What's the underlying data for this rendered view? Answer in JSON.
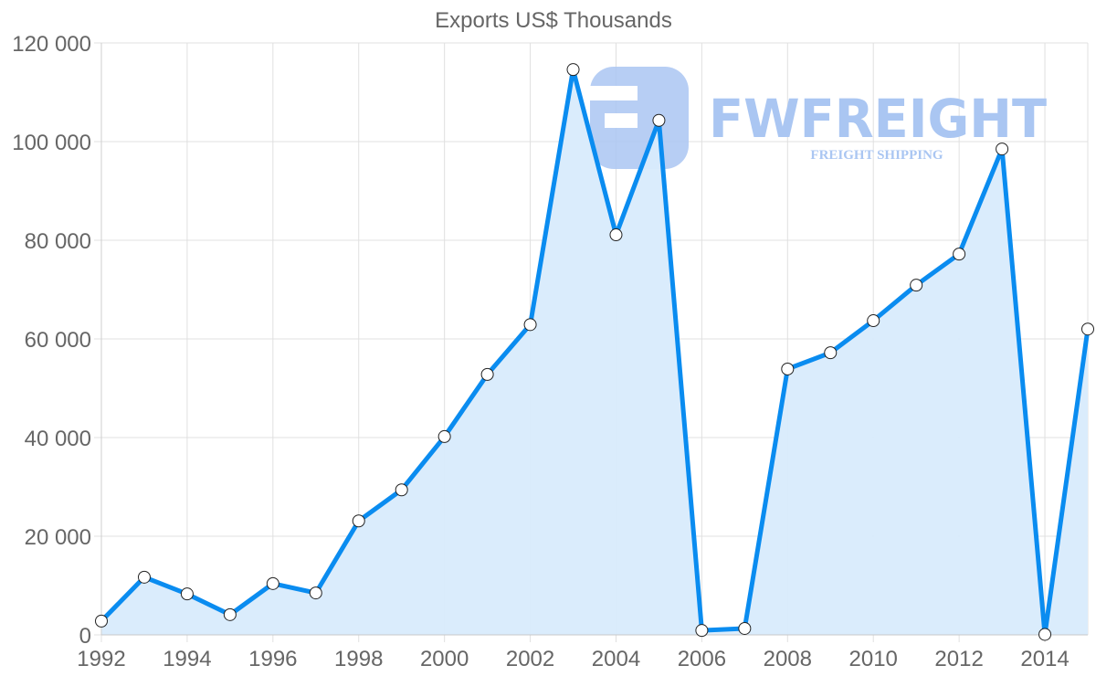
{
  "chart_data": {
    "type": "area",
    "title": "Exports US$ Thousands",
    "xlabel": "",
    "ylabel": "",
    "ylim": [
      0,
      120000
    ],
    "grid": true,
    "legend": null,
    "y_ticks": [
      0,
      20000,
      40000,
      60000,
      80000,
      100000,
      120000
    ],
    "y_tick_labels": [
      "0",
      "20 000",
      "40 000",
      "60 000",
      "80 000",
      "100 000",
      "120 000"
    ],
    "x_tick_labels": [
      "1992",
      "1994",
      "1996",
      "1998",
      "2000",
      "2002",
      "2004",
      "2006",
      "2008",
      "2010",
      "2012",
      "2014"
    ],
    "x": [
      1992,
      1993,
      1994,
      1995,
      1996,
      1997,
      1998,
      1999,
      2000,
      2001,
      2002,
      2003,
      2004,
      2005,
      2006,
      2007,
      2008,
      2009,
      2010,
      2011,
      2012,
      2013,
      2014,
      2015
    ],
    "series": [
      {
        "name": "Exports US$ Thousands",
        "color": "#0a8cf0",
        "fill": "#d8ebfc",
        "values": [
          2800,
          11700,
          8300,
          4100,
          10400,
          8500,
          23100,
          29400,
          40200,
          52800,
          62900,
          114600,
          81100,
          104300,
          900,
          1300,
          53900,
          57200,
          63700,
          70900,
          77200,
          98500,
          100,
          62000
        ]
      }
    ]
  },
  "watermark": {
    "brand": "FWFREIGHT",
    "tagline": "FREIGHT SHIPPING",
    "color": "#aac6f2"
  }
}
